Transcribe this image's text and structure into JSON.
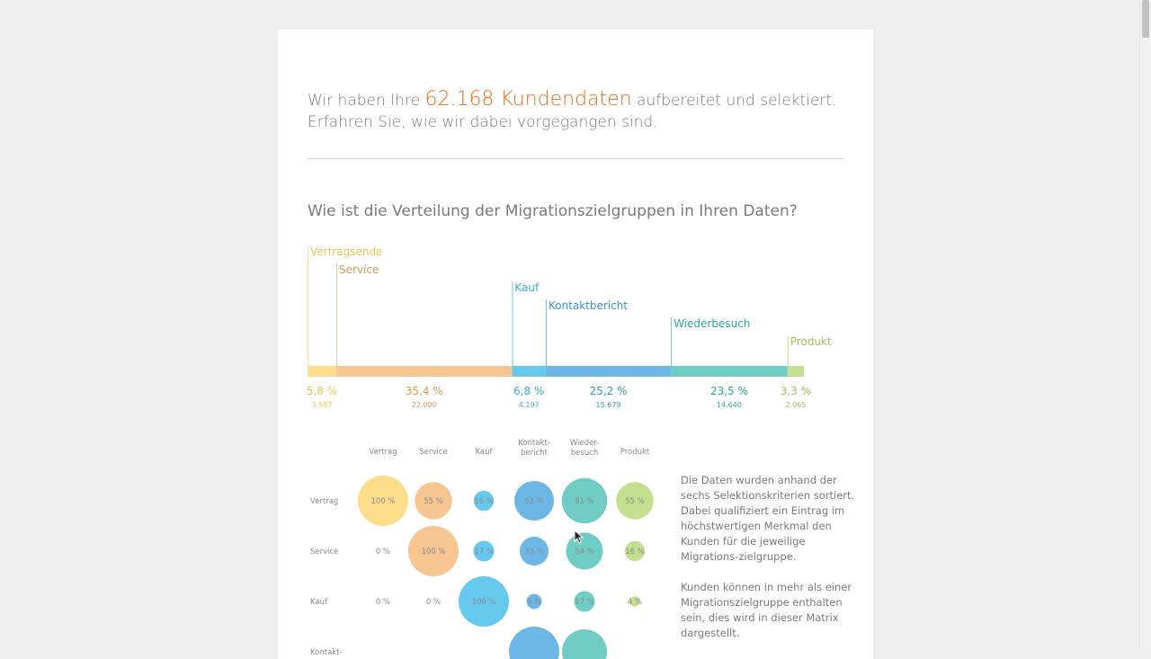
{
  "intro": {
    "line1_before": "Wir haben Ihre ",
    "highlight": "62.168 Kundendaten",
    "line1_after": " aufbereitet und selektiert.",
    "line2": "Erfahren Sie, wie wir dabei vorgegangen sind."
  },
  "question": "Wie ist die Verteilung der Migrationszielgruppen in Ihren Daten?",
  "chart_data": [
    {
      "type": "bar",
      "orientation": "stacked-horizontal",
      "segments": [
        {
          "name": "Vertragsende",
          "percent": 5.8,
          "percent_label": "5,8 %",
          "count": 3587,
          "count_label": "3.587",
          "color": "#fbdd8a",
          "label_color": "#e8c35a"
        },
        {
          "name": "Service",
          "percent": 35.4,
          "percent_label": "35,4 %",
          "count": 22000,
          "count_label": "22.000",
          "color": "#f6c592",
          "label_color": "#d99a55"
        },
        {
          "name": "Kauf",
          "percent": 6.8,
          "percent_label": "6,8 %",
          "count": 4197,
          "count_label": "4.197",
          "color": "#67c8ee",
          "label_color": "#3da9d6"
        },
        {
          "name": "Kontaktbericht",
          "percent": 25.2,
          "percent_label": "25,2 %",
          "count": 15679,
          "count_label": "15.679",
          "color": "#6db7e6",
          "label_color": "#3a95c9"
        },
        {
          "name": "Wiederbesuch",
          "percent": 23.5,
          "percent_label": "23,5 %",
          "count": 14640,
          "count_label": "14.640",
          "color": "#6fccc4",
          "label_color": "#2fa59c"
        },
        {
          "name": "Produkt",
          "percent": 3.3,
          "percent_label": "3,3 %",
          "count": 2065,
          "count_label": "2.065",
          "color": "#c4df8f",
          "label_color": "#9cc25a"
        }
      ]
    },
    {
      "type": "bubble-matrix",
      "columns": [
        "Vertrag",
        "Service",
        "Kauf",
        "Kontakt-\nbericht",
        "Wieder-\nbesuch",
        "Produkt"
      ],
      "column_colors": [
        "#fbdd8a",
        "#f6c592",
        "#67c8ee",
        "#6db7e6",
        "#6fccc4",
        "#c4df8f"
      ],
      "rows": [
        {
          "label": "Vertrag",
          "values": [
            100,
            55,
            16,
            62,
            81,
            55
          ],
          "labels": [
            "100 %",
            "55 %",
            "16 %",
            "62 %",
            "81 %",
            "55 %"
          ]
        },
        {
          "label": "Service",
          "values": [
            0,
            100,
            17,
            33,
            54,
            16
          ],
          "labels": [
            "0 %",
            "100 %",
            "17 %",
            "33 %",
            "54 %",
            "16 %"
          ]
        },
        {
          "label": "Kauf",
          "values": [
            0,
            0,
            100,
            9,
            17,
            4
          ],
          "labels": [
            "0 %",
            "0 %",
            "100 %",
            "9 %",
            "17 %",
            "4 %"
          ]
        },
        {
          "label": "Kontakt-",
          "values": [
            null,
            null,
            null,
            100,
            80,
            null
          ],
          "labels": [
            "",
            "",
            "",
            "",
            "",
            ""
          ]
        }
      ]
    }
  ],
  "matrix_note": {
    "p1": "Die Daten wurden anhand der sechs Selektionskriterien sortiert. Dabei qualifiziert ein Eintrag im höchstwertigen Merkmal den Kunden für die jeweilige Migrations-zielgruppe.",
    "p2": "Kunden können in mehr als einer Migrationszielgruppe enthalten sein, dies wird in dieser Matrix dargestellt."
  }
}
